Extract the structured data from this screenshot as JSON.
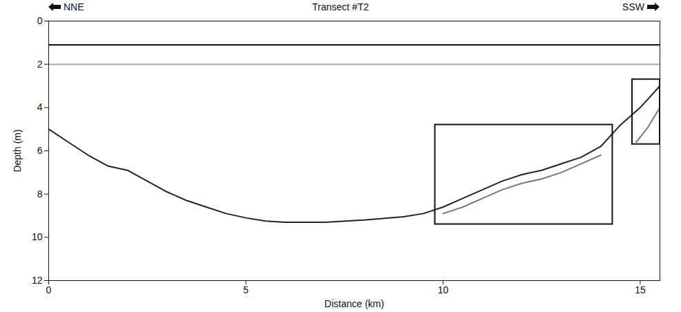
{
  "chart_data": {
    "type": "line",
    "title": "Transect #T2",
    "direction_left": "NNE",
    "direction_right": "SSW",
    "x_label": "Distance (km)",
    "y_label": "Depth (m)",
    "xlim": [
      0,
      15.5
    ],
    "ylim": [
      0,
      12
    ],
    "xticks": [
      0,
      5,
      10,
      15
    ],
    "yticks": [
      0,
      2,
      4,
      6,
      8,
      10,
      12
    ],
    "grid": false,
    "series": [
      {
        "color": "#111111",
        "line_style": "solid",
        "x": [
          0,
          15.5
        ],
        "values": [
          1.1,
          1.1
        ]
      },
      {
        "color": "#aaaaaa",
        "line_style": "solid",
        "x": [
          0,
          15.5
        ],
        "values": [
          2.0,
          2.0
        ]
      },
      {
        "color": "#222222",
        "line_style": "solid",
        "x": [
          0,
          0.5,
          1,
          1.5,
          2,
          2.5,
          3,
          3.5,
          4,
          4.5,
          5,
          5.5,
          6,
          7,
          8,
          9,
          9.5,
          10,
          10.5,
          11,
          11.5,
          12,
          12.5,
          13,
          13.5,
          14,
          14.5,
          15,
          15.5
        ],
        "values": [
          5.0,
          5.6,
          6.2,
          6.7,
          6.9,
          7.4,
          7.9,
          8.3,
          8.6,
          8.9,
          9.1,
          9.25,
          9.3,
          9.3,
          9.2,
          9.05,
          8.9,
          8.6,
          8.2,
          7.8,
          7.4,
          7.1,
          6.9,
          6.6,
          6.3,
          5.8,
          4.8,
          4.0,
          3.0
        ]
      },
      {
        "color": "#777777",
        "line_style": "solid",
        "x": [
          10,
          10.5,
          11,
          11.5,
          12,
          12.5,
          13,
          13.5,
          14
        ],
        "values": [
          8.9,
          8.6,
          8.2,
          7.8,
          7.5,
          7.3,
          7.0,
          6.6,
          6.2
        ]
      },
      {
        "color": "#777777",
        "line_style": "solid",
        "x": [
          14.9,
          15.2,
          15.5
        ],
        "values": [
          5.6,
          4.9,
          4.0
        ]
      }
    ],
    "boxes": [
      {
        "x": [
          9.8,
          14.3
        ],
        "y": [
          4.8,
          9.4
        ]
      },
      {
        "x": [
          14.8,
          15.5
        ],
        "y": [
          2.7,
          5.7
        ]
      }
    ]
  }
}
